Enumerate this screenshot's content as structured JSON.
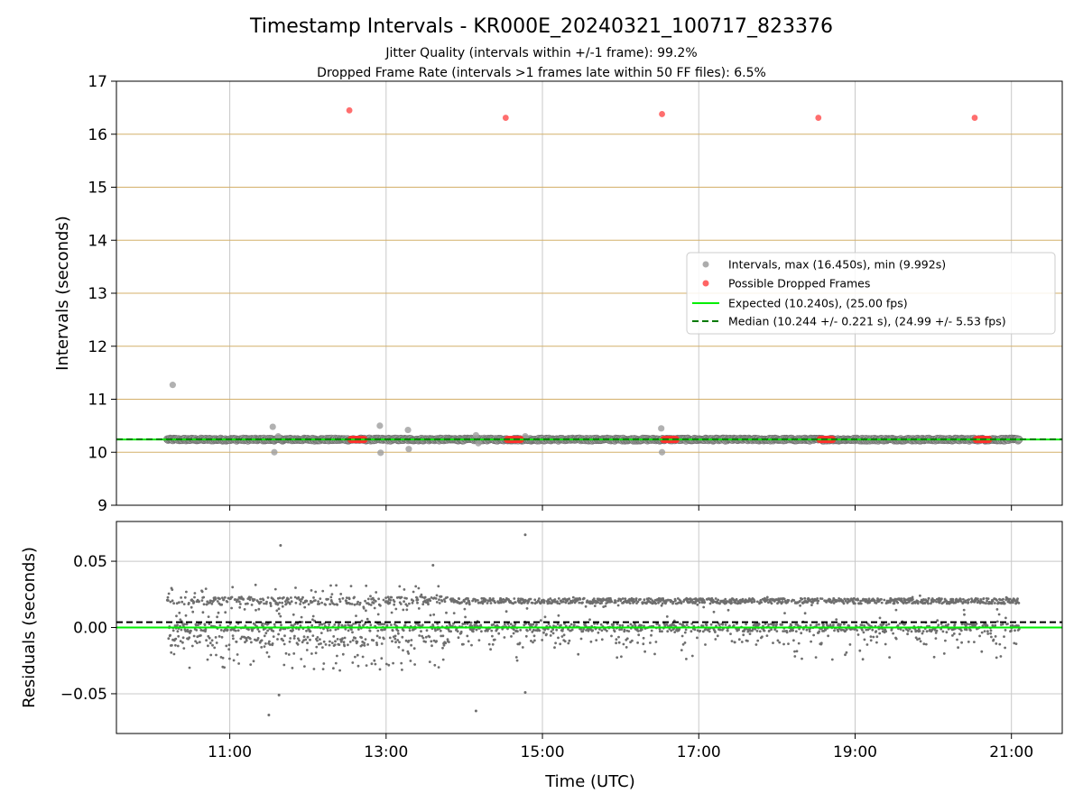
{
  "chart_data": [
    {
      "type": "scatter",
      "title": "Timestamp Intervals - KR000E_20240321_100717_823376",
      "subtitle_lines": [
        "Jitter Quality (intervals within +/-1 frame): 99.2%",
        "Dropped Frame Rate (intervals >1 frames late within 50 FF files): 6.5%"
      ],
      "xlabel": "",
      "ylabel": "Intervals (seconds)",
      "xlim_hours": [
        9.55,
        21.65
      ],
      "ylim": [
        9,
        17
      ],
      "y_ticks": [
        9,
        10,
        11,
        12,
        13,
        14,
        15,
        16,
        17
      ],
      "x_ticks_hours": [
        11,
        13,
        15,
        17,
        19,
        21
      ],
      "horizontal_gridlines": [
        10,
        11,
        12,
        13,
        14,
        15,
        16
      ],
      "colors": {
        "intervals": "#9e9e9e",
        "intervals_edge": "#6e6e6e",
        "dropped": "#ff3030",
        "expected": "#00ee00",
        "median": "#007a00",
        "hgrid": "#d4b06a",
        "vgrid": "#c8c8c8"
      },
      "intervals_baseline": {
        "value": 10.24,
        "start_hour": 10.2,
        "end_hour": 21.1
      },
      "intervals_outliers": [
        {
          "x_hour": 10.27,
          "y": 11.27
        },
        {
          "x_hour": 11.55,
          "y": 10.48
        },
        {
          "x_hour": 11.57,
          "y": 10.0
        },
        {
          "x_hour": 11.62,
          "y": 10.3
        },
        {
          "x_hour": 12.92,
          "y": 10.5
        },
        {
          "x_hour": 12.93,
          "y": 9.99
        },
        {
          "x_hour": 13.28,
          "y": 10.42
        },
        {
          "x_hour": 13.29,
          "y": 10.06
        },
        {
          "x_hour": 14.15,
          "y": 10.32
        },
        {
          "x_hour": 14.18,
          "y": 10.17
        },
        {
          "x_hour": 14.78,
          "y": 10.3
        },
        {
          "x_hour": 16.52,
          "y": 10.45
        },
        {
          "x_hour": 16.53,
          "y": 10.0
        }
      ],
      "dropped_frames": [
        {
          "x_hour": 12.53,
          "y": 16.45
        },
        {
          "x_hour": 14.53,
          "y": 16.31
        },
        {
          "x_hour": 16.53,
          "y": 16.38
        },
        {
          "x_hour": 18.53,
          "y": 16.31
        },
        {
          "x_hour": 20.53,
          "y": 16.31
        }
      ],
      "dropped_clusters": [
        {
          "start_hour": 12.55,
          "end_hour": 12.72,
          "y": 10.24
        },
        {
          "start_hour": 14.55,
          "end_hour": 14.72,
          "y": 10.24
        },
        {
          "start_hour": 16.55,
          "end_hour": 16.72,
          "y": 10.24
        },
        {
          "start_hour": 18.55,
          "end_hour": 18.72,
          "y": 10.24
        },
        {
          "start_hour": 20.55,
          "end_hour": 20.72,
          "y": 10.24
        }
      ],
      "expected_line": 10.24,
      "median_line": 10.244,
      "legend": {
        "placement": "center-right",
        "entries": [
          {
            "label": "Intervals, max (16.450s), min (9.992s)",
            "kind": "marker-gray"
          },
          {
            "label": "Possible Dropped Frames",
            "kind": "marker-red"
          },
          {
            "label": "Expected (10.240s), (25.00 fps)",
            "kind": "line-solid"
          },
          {
            "label": "Median (10.244 +/- 0.221 s), (24.99 +/- 5.53 fps)",
            "kind": "line-dashed"
          }
        ]
      }
    },
    {
      "type": "scatter",
      "title": "",
      "xlabel": "Time (UTC)",
      "ylabel": "Residuals (seconds)",
      "xlim_hours": [
        9.55,
        21.65
      ],
      "ylim": [
        -0.08,
        0.08
      ],
      "y_ticks": [
        0.05,
        0.0,
        -0.05
      ],
      "y_tick_labels": [
        "0.05",
        "0.00",
        "−0.05"
      ],
      "x_ticks_hours": [
        11,
        13,
        15,
        17,
        19,
        21
      ],
      "x_tick_labels": [
        "11:00",
        "13:00",
        "15:00",
        "17:00",
        "19:00",
        "21:00"
      ],
      "horizontal_gridlines": [
        -0.05,
        0.0,
        0.05
      ],
      "zero_line": 0.0,
      "median_line": 0.004,
      "data_span_hours": [
        10.2,
        21.1
      ],
      "bands": [
        {
          "center": 0.02,
          "spread": 0.0015
        },
        {
          "center": 0.0,
          "spread": 0.0015
        }
      ],
      "early_noise_end_hour": 13.8,
      "outliers": [
        {
          "x_hour": 11.5,
          "y": -0.066
        },
        {
          "x_hour": 11.65,
          "y": 0.062
        },
        {
          "x_hour": 11.63,
          "y": -0.051
        },
        {
          "x_hour": 13.6,
          "y": 0.047
        },
        {
          "x_hour": 14.15,
          "y": -0.063
        },
        {
          "x_hour": 14.78,
          "y": 0.07
        },
        {
          "x_hour": 14.78,
          "y": -0.049
        }
      ]
    }
  ]
}
